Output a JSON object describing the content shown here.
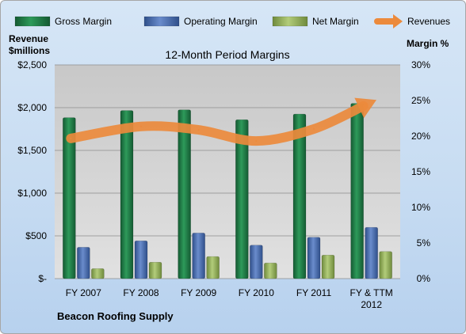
{
  "chart_data": {
    "type": "bar",
    "title": "12-Month Period Margins",
    "ylabel_left": "Revenue\n$millions",
    "ylabel_right": "Margin %",
    "company": "Beacon Roofing Supply",
    "categories": [
      "FY 2007",
      "FY 2008",
      "FY 2009",
      "FY 2010",
      "FY 2011",
      "FY & TTM\n2012"
    ],
    "ylim_left": [
      0,
      2500
    ],
    "ylim_right": [
      0,
      30
    ],
    "yticks_left": [
      "$-",
      "$500",
      "$1,000",
      "$1,500",
      "$2,000",
      "$2,500"
    ],
    "yticks_right": [
      "0%",
      "5%",
      "10%",
      "15%",
      "20%",
      "25%",
      "30%"
    ],
    "series": [
      {
        "name": "Gross Margin",
        "axis": "right",
        "color": "#1f7a45",
        "values": [
          22.6,
          23.6,
          23.7,
          22.3,
          23.1,
          24.6
        ]
      },
      {
        "name": "Operating Margin",
        "axis": "right",
        "color": "#4a6fb0",
        "values": [
          4.4,
          5.3,
          6.4,
          4.7,
          5.8,
          7.2
        ]
      },
      {
        "name": "Net Margin",
        "axis": "right",
        "color": "#8fad5a",
        "values": [
          1.4,
          2.3,
          3.1,
          2.2,
          3.3,
          3.8
        ]
      },
      {
        "name": "Revenues",
        "axis": "left",
        "type": "line",
        "color": "#ec8a3c",
        "values": [
          1640,
          1780,
          1740,
          1610,
          1750,
          2020
        ]
      }
    ],
    "grid": true,
    "legend_position": "top"
  }
}
